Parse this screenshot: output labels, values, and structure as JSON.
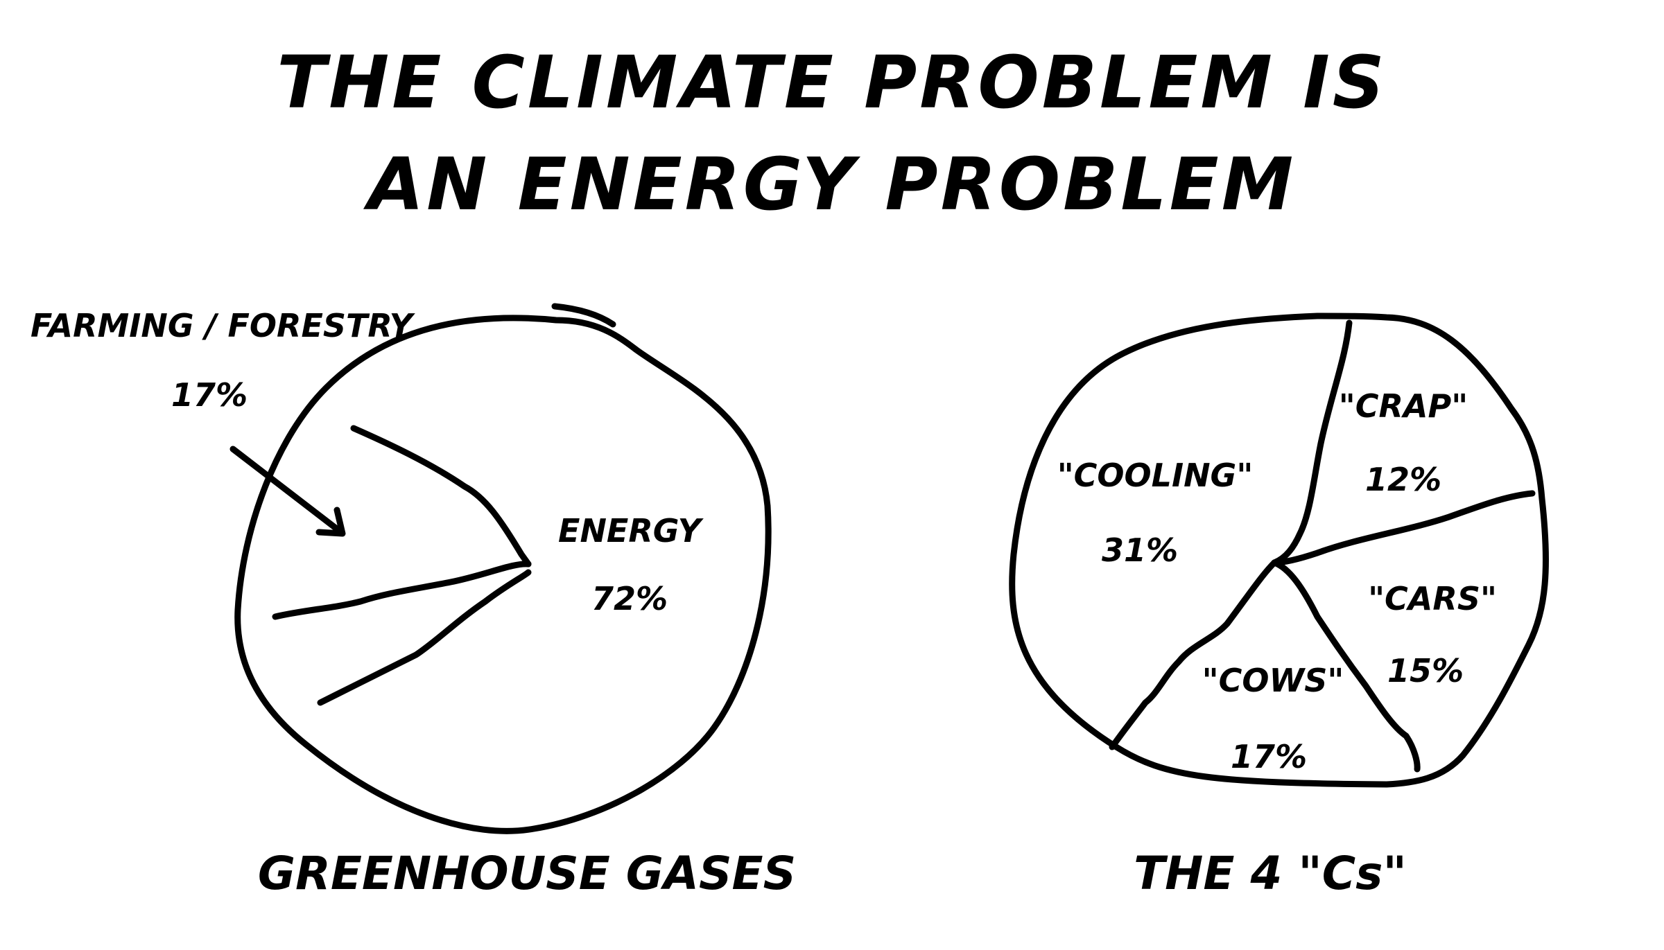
{
  "title": {
    "line1": "THE CLIMATE PROBLEM IS",
    "line2": "AN ENERGY PROBLEM"
  },
  "chart_data": [
    {
      "type": "pie",
      "title": "GREENHOUSE GASES",
      "slices": [
        {
          "label": "ENERGY",
          "value_label": "72%",
          "value": 72
        },
        {
          "label": "FARMING / FORESTRY",
          "value_label": "17%",
          "value": 17
        },
        {
          "label": "",
          "value_label": "",
          "value": 11
        }
      ]
    },
    {
      "type": "pie",
      "title": "THE 4 \"Cs\"",
      "slices": [
        {
          "label": "\"COOLING\"",
          "value_label": "31%",
          "value": 31
        },
        {
          "label": "\"CRAP\"",
          "value_label": "12%",
          "value": 12
        },
        {
          "label": "\"CARS\"",
          "value_label": "15%",
          "value": 15
        },
        {
          "label": "\"COWS\"",
          "value_label": "17%",
          "value": 17
        }
      ]
    }
  ]
}
